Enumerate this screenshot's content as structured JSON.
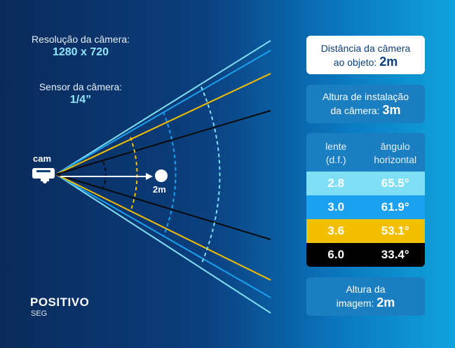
{
  "resolution": {
    "label": "Resolução da câmera:",
    "value": "1280 x 720"
  },
  "sensor": {
    "label": "Sensor da câmera:",
    "value": "1/4”"
  },
  "camera_label": "cam",
  "object_label": "2m",
  "distance_card": {
    "line1": "Distância da câmera",
    "line2": "ao objeto:",
    "value": "2m"
  },
  "height_card": {
    "line1": "Altura de instalação",
    "line2": "da câmera:",
    "value": "3m"
  },
  "table": {
    "headers": [
      {
        "line1": "lente",
        "line2": "(d.f.)"
      },
      {
        "line1": "ângulo",
        "line2": "horizontal"
      }
    ],
    "rows": [
      {
        "lens": "2.8",
        "angle": "65.5°",
        "bg": "#7fe0f5",
        "fg": "#ffffff"
      },
      {
        "lens": "3.0",
        "angle": "61.9°",
        "bg": "#1aa0ee",
        "fg": "#ffffff"
      },
      {
        "lens": "3.6",
        "angle": "53.1°",
        "bg": "#f2c000",
        "fg": "#ffffff"
      },
      {
        "lens": "6.0",
        "angle": "33.4°",
        "bg": "#000000",
        "fg": "#ffffff"
      }
    ]
  },
  "image_height_card": {
    "line1": "Altura da",
    "line2": "imagem:",
    "value": "2m"
  },
  "brand": {
    "name": "POSITIVO",
    "sub": "SEG"
  },
  "colors": {
    "lens_2_8": "#7fe0f5",
    "lens_3_0": "#1aa0ee",
    "lens_3_6": "#f2c000",
    "lens_6_0": "#000000"
  }
}
